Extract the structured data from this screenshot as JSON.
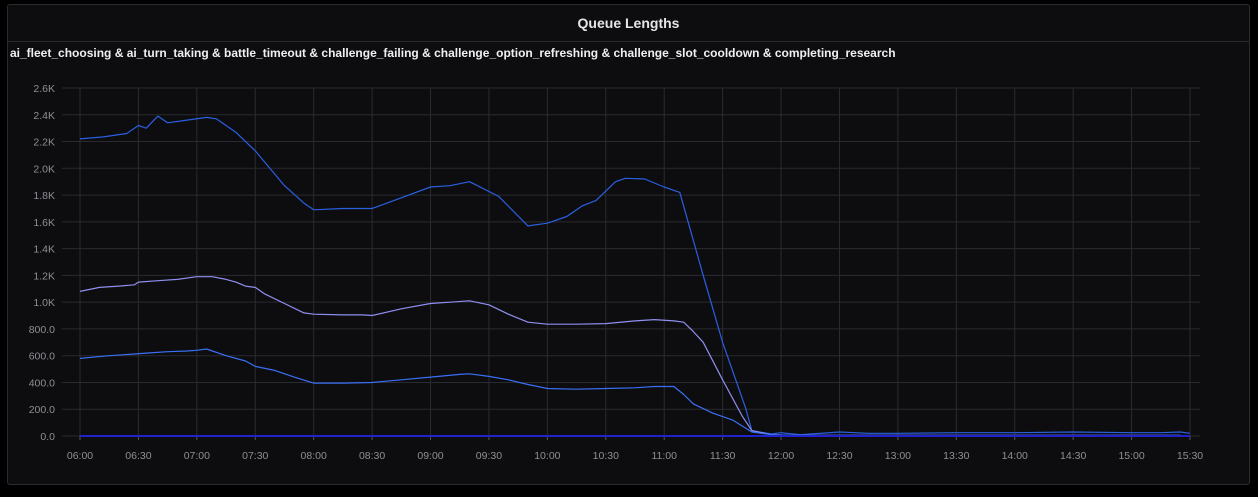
{
  "panel": {
    "title": "Queue Lengths",
    "series_label": "ai_fleet_choosing & ai_turn_taking & battle_timeout & challenge_failing & challenge_option_refreshing & challenge_slot_cooldown & completing_research"
  },
  "colors": {
    "background": "#0d0d0f",
    "grid": "#2a2b30",
    "series_top": "#2a5fe0",
    "series_mid": "#8f8ff0",
    "series_low": "#3a6ff5",
    "series_zero": "#2222cc"
  },
  "chart_data": {
    "type": "line",
    "grid": true,
    "x_unit": "time",
    "xlim": [
      "06:00",
      "15:30"
    ],
    "ylim": [
      0,
      2600
    ],
    "x_ticks": [
      "06:00",
      "06:30",
      "07:00",
      "07:30",
      "08:00",
      "08:30",
      "09:00",
      "09:30",
      "10:00",
      "10:30",
      "11:00",
      "11:30",
      "12:00",
      "12:30",
      "13:00",
      "13:30",
      "14:00",
      "14:30",
      "15:00",
      "15:30"
    ],
    "y_ticks": [
      "0.0",
      "200.0",
      "400.0",
      "600.0",
      "800.0",
      "1.0K",
      "1.2K",
      "1.4K",
      "1.6K",
      "1.8K",
      "2.0K",
      "2.2K",
      "2.4K",
      "2.6K"
    ],
    "series": [
      {
        "color": "#2a5fe0",
        "points": [
          [
            "06:00",
            2220
          ],
          [
            "06:12",
            2235
          ],
          [
            "06:24",
            2260
          ],
          [
            "06:30",
            2320
          ],
          [
            "06:34",
            2300
          ],
          [
            "06:40",
            2390
          ],
          [
            "06:45",
            2340
          ],
          [
            "06:55",
            2360
          ],
          [
            "07:05",
            2380
          ],
          [
            "07:10",
            2370
          ],
          [
            "07:20",
            2270
          ],
          [
            "07:30",
            2130
          ],
          [
            "07:45",
            1870
          ],
          [
            "07:55",
            1740
          ],
          [
            "08:00",
            1690
          ],
          [
            "08:15",
            1700
          ],
          [
            "08:30",
            1700
          ],
          [
            "08:45",
            1780
          ],
          [
            "09:00",
            1860
          ],
          [
            "09:10",
            1870
          ],
          [
            "09:20",
            1900
          ],
          [
            "09:35",
            1790
          ],
          [
            "09:50",
            1570
          ],
          [
            "10:00",
            1590
          ],
          [
            "10:10",
            1640
          ],
          [
            "10:18",
            1720
          ],
          [
            "10:25",
            1760
          ],
          [
            "10:35",
            1900
          ],
          [
            "10:40",
            1925
          ],
          [
            "10:50",
            1920
          ],
          [
            "11:00",
            1860
          ],
          [
            "11:08",
            1820
          ],
          [
            "11:20",
            1200
          ],
          [
            "11:30",
            700
          ],
          [
            "11:42",
            200
          ],
          [
            "11:45",
            40
          ],
          [
            "11:55",
            15
          ],
          [
            "12:00",
            25
          ],
          [
            "12:10",
            10
          ],
          [
            "12:30",
            30
          ],
          [
            "12:45",
            20
          ],
          [
            "13:00",
            20
          ],
          [
            "13:30",
            25
          ],
          [
            "14:00",
            25
          ],
          [
            "14:30",
            30
          ],
          [
            "15:00",
            25
          ],
          [
            "15:15",
            25
          ],
          [
            "15:25",
            30
          ],
          [
            "15:30",
            20
          ]
        ]
      },
      {
        "color": "#8f8ff0",
        "points": [
          [
            "06:00",
            1080
          ],
          [
            "06:10",
            1110
          ],
          [
            "06:20",
            1120
          ],
          [
            "06:28",
            1130
          ],
          [
            "06:30",
            1150
          ],
          [
            "06:40",
            1160
          ],
          [
            "06:50",
            1170
          ],
          [
            "07:00",
            1190
          ],
          [
            "07:08",
            1190
          ],
          [
            "07:15",
            1170
          ],
          [
            "07:20",
            1150
          ],
          [
            "07:25",
            1120
          ],
          [
            "07:30",
            1110
          ],
          [
            "07:35",
            1060
          ],
          [
            "07:45",
            990
          ],
          [
            "07:55",
            920
          ],
          [
            "08:00",
            910
          ],
          [
            "08:15",
            905
          ],
          [
            "08:25",
            905
          ],
          [
            "08:30",
            900
          ],
          [
            "08:45",
            950
          ],
          [
            "09:00",
            990
          ],
          [
            "09:10",
            1000
          ],
          [
            "09:20",
            1010
          ],
          [
            "09:30",
            980
          ],
          [
            "09:40",
            910
          ],
          [
            "09:50",
            850
          ],
          [
            "10:00",
            835
          ],
          [
            "10:15",
            835
          ],
          [
            "10:30",
            840
          ],
          [
            "10:45",
            860
          ],
          [
            "10:55",
            870
          ],
          [
            "11:05",
            860
          ],
          [
            "11:10",
            850
          ],
          [
            "11:15",
            780
          ],
          [
            "11:20",
            700
          ],
          [
            "11:30",
            420
          ],
          [
            "11:40",
            150
          ],
          [
            "11:45",
            40
          ],
          [
            "11:55",
            10
          ],
          [
            "12:05",
            5
          ],
          [
            "12:30",
            5
          ],
          [
            "13:00",
            5
          ],
          [
            "14:00",
            5
          ],
          [
            "14:30",
            5
          ],
          [
            "15:00",
            5
          ],
          [
            "15:25",
            5
          ]
        ]
      },
      {
        "color": "#3a6ff5",
        "points": [
          [
            "06:00",
            580
          ],
          [
            "06:15",
            600
          ],
          [
            "06:25",
            610
          ],
          [
            "06:35",
            620
          ],
          [
            "06:45",
            630
          ],
          [
            "06:55",
            635
          ],
          [
            "07:00",
            640
          ],
          [
            "07:05",
            650
          ],
          [
            "07:15",
            600
          ],
          [
            "07:25",
            560
          ],
          [
            "07:30",
            520
          ],
          [
            "07:40",
            490
          ],
          [
            "07:50",
            440
          ],
          [
            "08:00",
            395
          ],
          [
            "08:15",
            395
          ],
          [
            "08:30",
            400
          ],
          [
            "08:45",
            420
          ],
          [
            "09:00",
            440
          ],
          [
            "09:15",
            460
          ],
          [
            "09:20",
            465
          ],
          [
            "09:30",
            445
          ],
          [
            "09:40",
            420
          ],
          [
            "09:50",
            385
          ],
          [
            "10:00",
            355
          ],
          [
            "10:15",
            350
          ],
          [
            "10:30",
            355
          ],
          [
            "10:45",
            360
          ],
          [
            "10:55",
            370
          ],
          [
            "11:05",
            370
          ],
          [
            "11:10",
            310
          ],
          [
            "11:15",
            240
          ],
          [
            "11:25",
            170
          ],
          [
            "11:35",
            120
          ],
          [
            "11:45",
            30
          ],
          [
            "11:55",
            10
          ],
          [
            "12:05",
            5
          ],
          [
            "12:30",
            5
          ],
          [
            "13:00",
            5
          ],
          [
            "14:00",
            5
          ],
          [
            "15:00",
            5
          ],
          [
            "15:25",
            5
          ]
        ]
      },
      {
        "color": "#2222cc",
        "points": [
          [
            "06:00",
            0
          ],
          [
            "15:30",
            0
          ]
        ]
      }
    ]
  }
}
